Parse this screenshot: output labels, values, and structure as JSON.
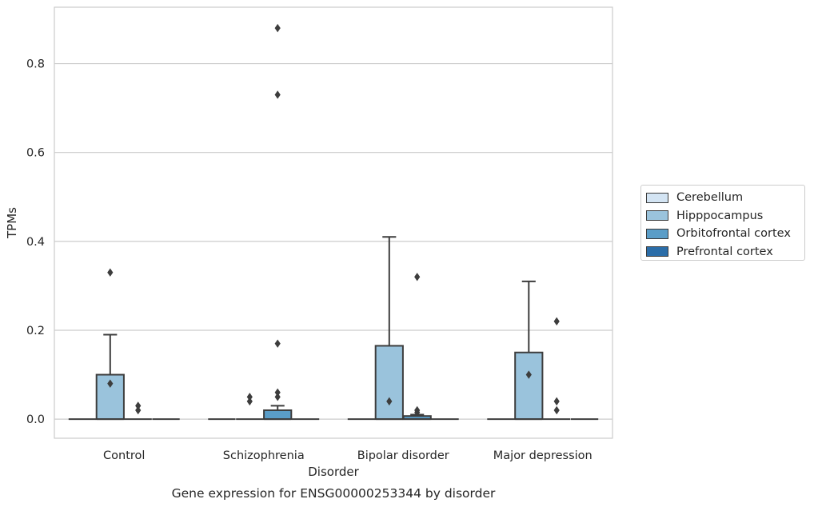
{
  "chart_data": {
    "type": "box",
    "title": "Gene expression for ENSG00000253344 by disorder",
    "xlabel": "Disorder",
    "ylabel": "TPMs",
    "ylim": [
      -0.043,
      0.927
    ],
    "yticks": [
      0.0,
      0.2,
      0.4,
      0.6,
      0.8
    ],
    "ytick_labels": [
      "0.0",
      "0.2",
      "0.4",
      "0.6",
      "0.8"
    ],
    "grid": "horizontal",
    "legend_position": "right",
    "categories": [
      "Control",
      "Schizophrenia",
      "Bipolar disorder",
      "Major depression"
    ],
    "series": [
      {
        "name": "Cerebellum",
        "color": "#d3e4f3",
        "boxes": [
          {
            "q1": 0,
            "median": 0,
            "q3": 0,
            "whisker_low": 0,
            "whisker_high": 0,
            "outliers": []
          },
          {
            "q1": 0,
            "median": 0,
            "q3": 0,
            "whisker_low": 0,
            "whisker_high": 0,
            "outliers": []
          },
          {
            "q1": 0,
            "median": 0,
            "q3": 0,
            "whisker_low": 0,
            "whisker_high": 0,
            "outliers": []
          },
          {
            "q1": 0,
            "median": 0,
            "q3": 0,
            "whisker_low": 0,
            "whisker_high": 0,
            "outliers": []
          }
        ]
      },
      {
        "name": "Hipppocampus",
        "color": "#9ac3dc",
        "boxes": [
          {
            "q1": 0,
            "median": 0,
            "q3": 0.1,
            "whisker_low": 0,
            "whisker_high": 0.19,
            "outliers": [
              0.08,
              0.33
            ]
          },
          {
            "q1": 0,
            "median": 0,
            "q3": 0,
            "whisker_low": 0,
            "whisker_high": 0,
            "outliers": [
              0.04,
              0.05
            ]
          },
          {
            "q1": 0,
            "median": 0,
            "q3": 0.165,
            "whisker_low": 0,
            "whisker_high": 0.41,
            "outliers": [
              0.04
            ]
          },
          {
            "q1": 0,
            "median": 0,
            "q3": 0.15,
            "whisker_low": 0,
            "whisker_high": 0.31,
            "outliers": [
              0.1
            ]
          }
        ]
      },
      {
        "name": "Orbitofrontal cortex",
        "color": "#5a9dc8",
        "boxes": [
          {
            "q1": 0,
            "median": 0,
            "q3": 0,
            "whisker_low": 0,
            "whisker_high": 0,
            "outliers": [
              0.02,
              0.03
            ]
          },
          {
            "q1": 0,
            "median": 0,
            "q3": 0.02,
            "whisker_low": 0,
            "whisker_high": 0.03,
            "outliers": [
              0.05,
              0.06,
              0.17,
              0.73,
              0.88
            ]
          },
          {
            "q1": 0,
            "median": 0,
            "q3": 0.007,
            "whisker_low": 0,
            "whisker_high": 0.01,
            "outliers": [
              0.015,
              0.02,
              0.32
            ]
          },
          {
            "q1": 0,
            "median": 0,
            "q3": 0,
            "whisker_low": 0,
            "whisker_high": 0,
            "outliers": [
              0.02,
              0.04,
              0.22
            ]
          }
        ]
      },
      {
        "name": "Prefrontal cortex",
        "color": "#2b6da8",
        "boxes": [
          {
            "q1": 0,
            "median": 0,
            "q3": 0,
            "whisker_low": 0,
            "whisker_high": 0,
            "outliers": []
          },
          {
            "q1": 0,
            "median": 0,
            "q3": 0,
            "whisker_low": 0,
            "whisker_high": 0,
            "outliers": []
          },
          {
            "q1": 0,
            "median": 0,
            "q3": 0,
            "whisker_low": 0,
            "whisker_high": 0,
            "outliers": []
          },
          {
            "q1": 0,
            "median": 0,
            "q3": 0,
            "whisker_low": 0,
            "whisker_high": 0,
            "outliers": []
          }
        ]
      }
    ]
  }
}
